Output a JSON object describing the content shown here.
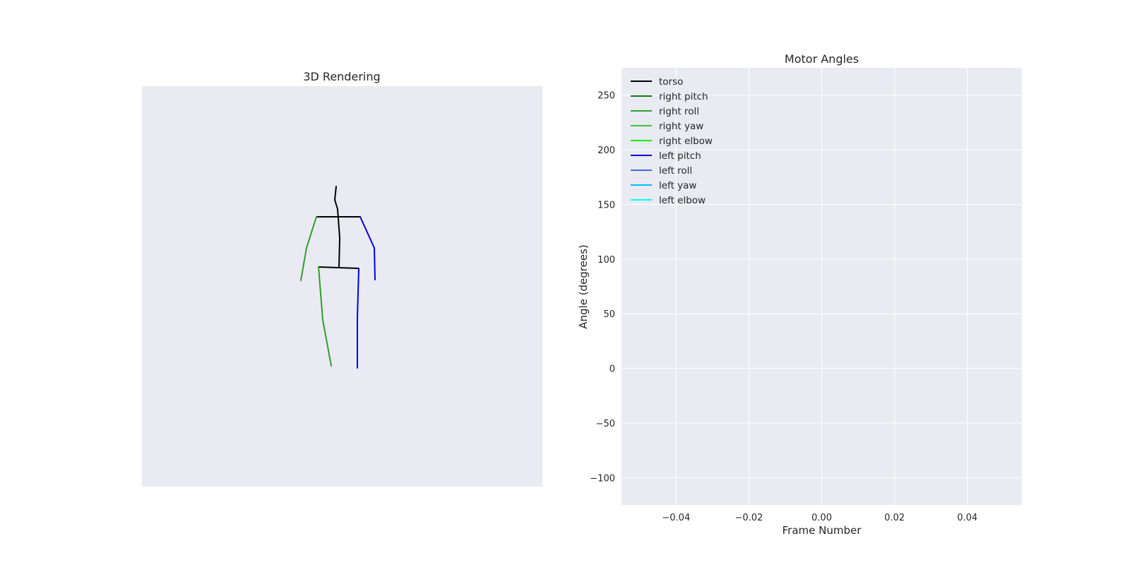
{
  "chart_data": [
    {
      "type": "other",
      "title": "3D Rendering",
      "panel_background": "#eaeaf2",
      "skeleton": [
        {
          "part": "torso",
          "color": "#000000",
          "points": [
            [
              476,
              264
            ],
            [
              474,
              283
            ],
            [
              478,
              296
            ],
            [
              481,
              337
            ],
            [
              480,
              379
            ]
          ]
        },
        {
          "part": "shoulders",
          "color": "#000000",
          "points": [
            [
              448,
              307
            ],
            [
              510,
              307
            ]
          ]
        },
        {
          "part": "hips",
          "color": "#000000",
          "points": [
            [
              451,
              378
            ],
            [
              508,
              380
            ]
          ]
        },
        {
          "part": "right arm",
          "color": "#2ca02c",
          "points": [
            [
              448,
              307
            ],
            [
              434,
              351
            ],
            [
              426,
              397
            ]
          ]
        },
        {
          "part": "left arm",
          "color": "#0000ee",
          "points": [
            [
              510,
              307
            ],
            [
              530,
              351
            ],
            [
              531,
              396
            ]
          ]
        },
        {
          "part": "right leg",
          "color": "#2ca02c",
          "points": [
            [
              451,
              378
            ],
            [
              457,
              453
            ],
            [
              469,
              518
            ]
          ]
        },
        {
          "part": "left leg",
          "color": "#0000ee",
          "points": [
            [
              508,
              380
            ],
            [
              506,
              450
            ],
            [
              506,
              521
            ]
          ]
        }
      ]
    },
    {
      "type": "line",
      "title": "Motor Angles",
      "xlabel": "Frame Number",
      "ylabel": "Angle (degrees)",
      "xlim": [
        -0.055,
        0.055
      ],
      "ylim": [
        -125,
        275
      ],
      "xticks": [
        -0.04,
        -0.02,
        0.0,
        0.02,
        0.04
      ],
      "xtick_labels": [
        "−0.04",
        "−0.02",
        "0.00",
        "0.02",
        "0.04"
      ],
      "yticks": [
        -100,
        -50,
        0,
        50,
        100,
        150,
        200,
        250
      ],
      "ytick_labels": [
        "−100",
        "−50",
        "0",
        "50",
        "100",
        "150",
        "200",
        "250"
      ],
      "grid": true,
      "legend_position": "top-left",
      "panel_background": "#eaeaf2",
      "series": [
        {
          "name": "torso",
          "color": "#000000",
          "values": []
        },
        {
          "name": "right pitch",
          "color": "#0a7a0a",
          "values": []
        },
        {
          "name": "right roll",
          "color": "#2ca02c",
          "values": []
        },
        {
          "name": "right yaw",
          "color": "#32cd32",
          "values": []
        },
        {
          "name": "right elbow",
          "color": "#00ee00",
          "values": []
        },
        {
          "name": "left pitch",
          "color": "#0000dd",
          "values": []
        },
        {
          "name": "left roll",
          "color": "#4169e1",
          "values": []
        },
        {
          "name": "left yaw",
          "color": "#00bfff",
          "values": []
        },
        {
          "name": "left elbow",
          "color": "#00ffff",
          "values": []
        }
      ]
    }
  ]
}
